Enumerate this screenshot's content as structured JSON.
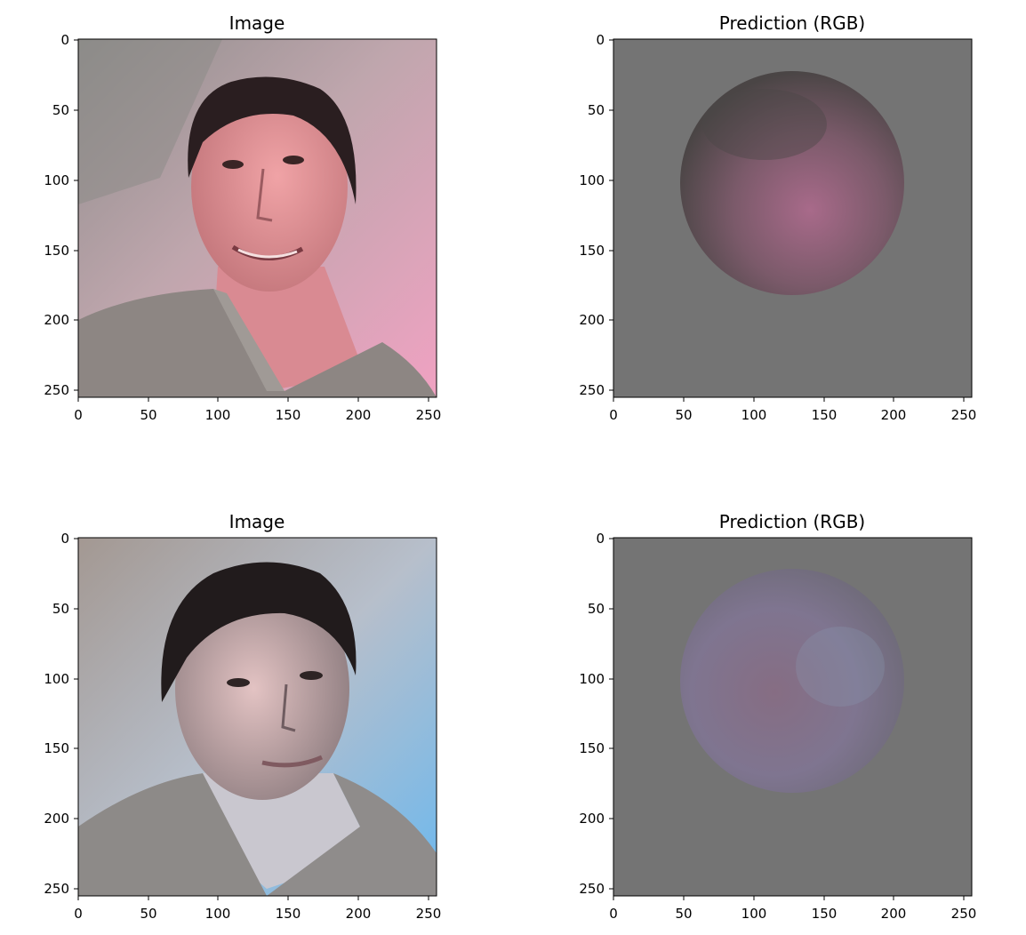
{
  "panels": [
    {
      "id": "p1",
      "title": "Image",
      "kind": "photo",
      "lighting": "pink",
      "x_ticks": [
        "0",
        "50",
        "100",
        "150",
        "200",
        "250"
      ],
      "y_ticks": [
        "0",
        "50",
        "100",
        "150",
        "200",
        "250"
      ]
    },
    {
      "id": "p2",
      "title": "Prediction (RGB)",
      "kind": "sphere",
      "lighting": "pink",
      "x_ticks": [
        "0",
        "50",
        "100",
        "150",
        "200",
        "250"
      ],
      "y_ticks": [
        "0",
        "50",
        "100",
        "150",
        "200",
        "250"
      ]
    },
    {
      "id": "p3",
      "title": "Image",
      "kind": "photo",
      "lighting": "blue",
      "x_ticks": [
        "0",
        "50",
        "100",
        "150",
        "200",
        "250"
      ],
      "y_ticks": [
        "0",
        "50",
        "100",
        "150",
        "200",
        "250"
      ]
    },
    {
      "id": "p4",
      "title": "Prediction (RGB)",
      "kind": "sphere",
      "lighting": "blue",
      "x_ticks": [
        "0",
        "50",
        "100",
        "150",
        "200",
        "250"
      ],
      "y_ticks": [
        "0",
        "50",
        "100",
        "150",
        "200",
        "250"
      ]
    }
  ],
  "colors": {
    "background": "#ffffff",
    "sphere_backdrop": "#747474",
    "pink_light": "#e7a2bd",
    "blue_light": "#7fbde9",
    "hair": "#241c1c",
    "shirt": "#8b8783"
  }
}
